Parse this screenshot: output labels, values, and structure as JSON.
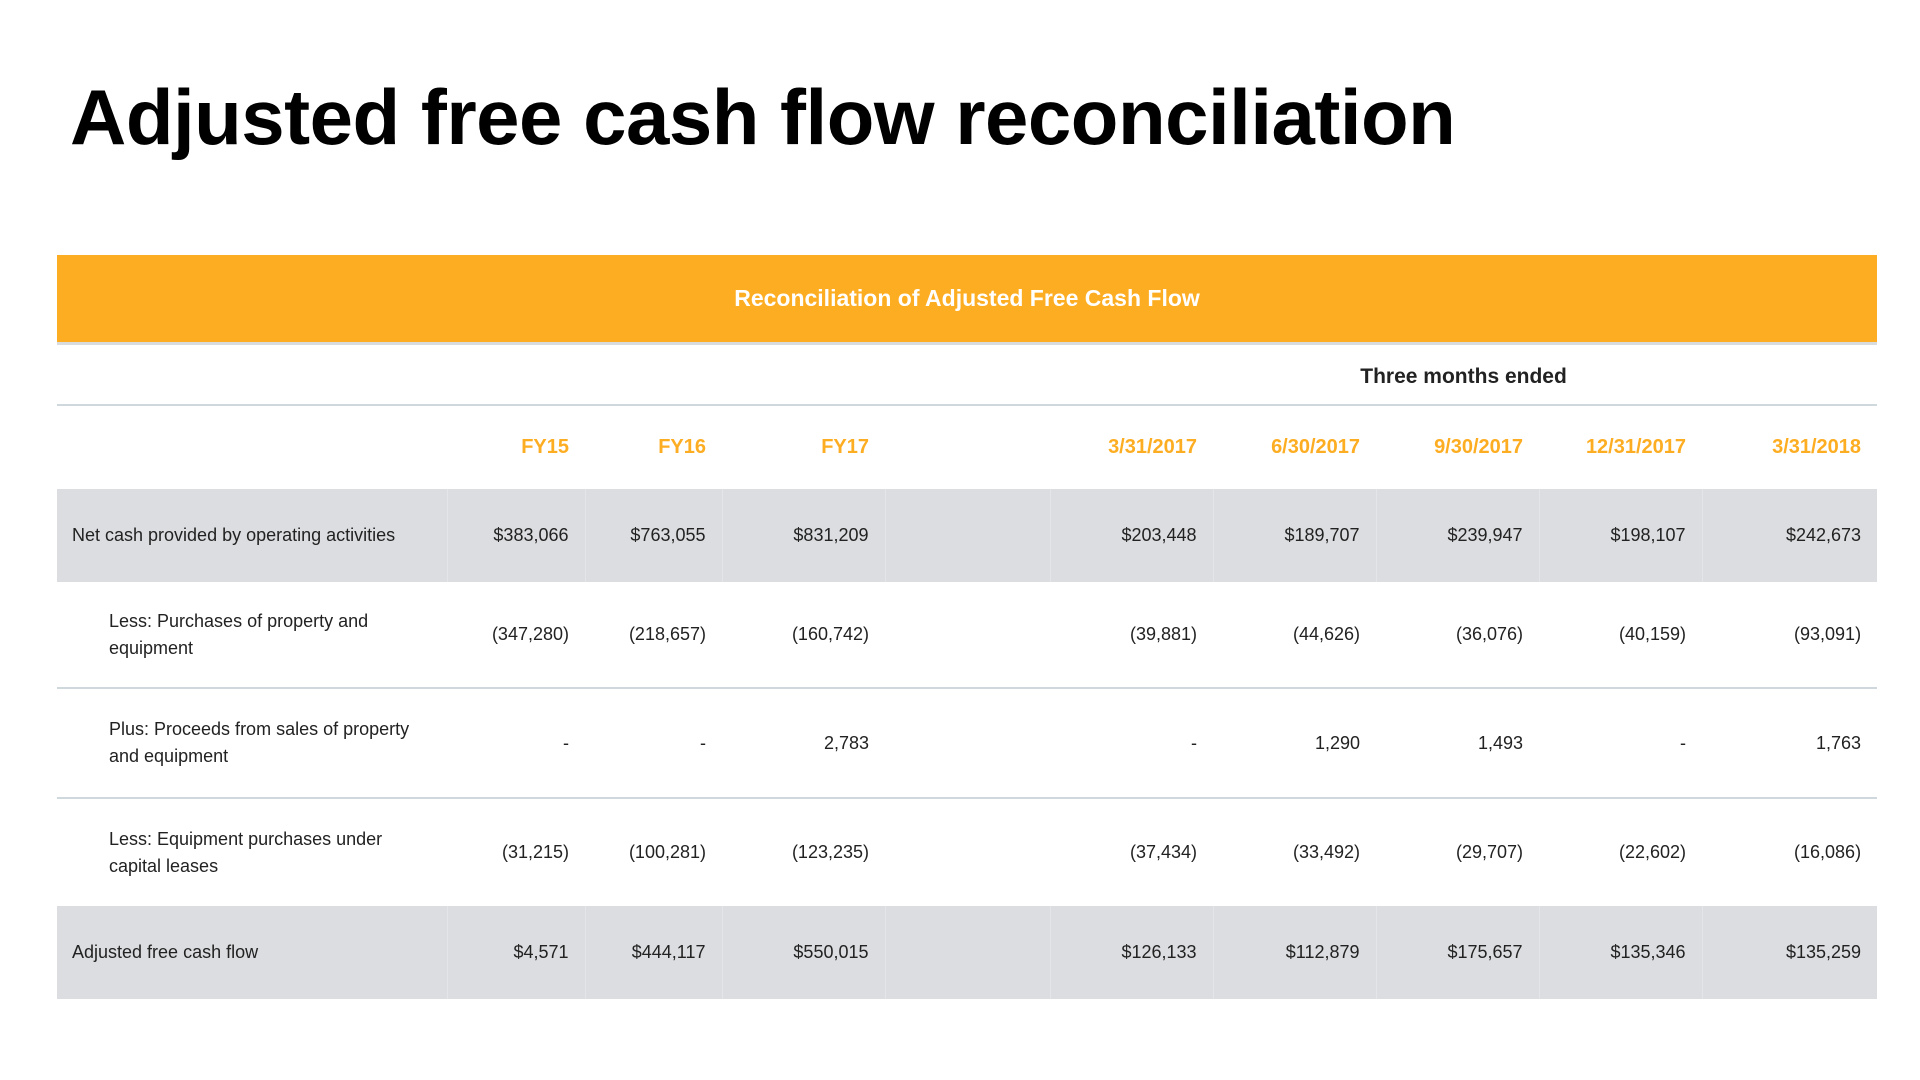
{
  "page": {
    "title": "Adjusted free cash flow reconciliation"
  },
  "table": {
    "banner": "Reconciliation of Adjusted Free Cash Flow",
    "super_header": "Three months ended",
    "columns": [
      "FY15",
      "FY16",
      "FY17",
      "3/31/2017",
      "6/30/2017",
      "9/30/2017",
      "12/31/2017",
      "3/31/2018"
    ],
    "rows": [
      {
        "label": "Net cash provided by operating activities",
        "values": [
          "$383,066",
          "$763,055",
          "$831,209",
          "$203,448",
          "$189,707",
          "$239,947",
          "$198,107",
          "$242,673"
        ]
      },
      {
        "label": "Less: Purchases of property and equipment",
        "values": [
          "(347,280)",
          "(218,657)",
          "(160,742)",
          "(39,881)",
          "(44,626)",
          "(36,076)",
          "(40,159)",
          "(93,091)"
        ]
      },
      {
        "label": "Plus: Proceeds from sales of property and equipment",
        "values": [
          "-",
          "-",
          "2,783",
          "-",
          "1,290",
          "1,493",
          "-",
          "1,763"
        ]
      },
      {
        "label": "Less: Equipment purchases under capital leases",
        "values": [
          "(31,215)",
          "(100,281)",
          "(123,235)",
          "(37,434)",
          "(33,492)",
          "(29,707)",
          "(22,602)",
          "(16,086)"
        ]
      },
      {
        "label": "Adjusted free cash flow",
        "values": [
          "$4,571",
          "$444,117",
          "$550,015",
          "$126,133",
          "$112,879",
          "$175,657",
          "$135,346",
          "$135,259"
        ]
      }
    ]
  },
  "colors": {
    "accent": "#fdad22",
    "shaded_row": "#dcdde0",
    "divider": "#cfd8dc"
  }
}
